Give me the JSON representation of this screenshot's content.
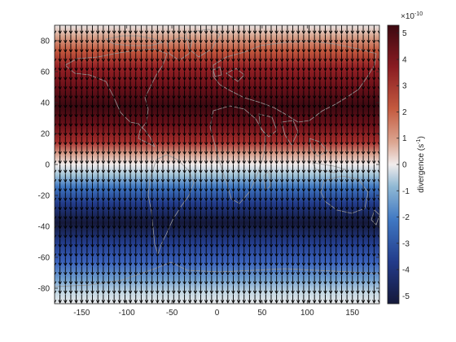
{
  "chart_data": {
    "type": "heatmap",
    "title": "",
    "xlabel": "",
    "ylabel": "",
    "xlim": [
      -180,
      180
    ],
    "ylim": [
      -90,
      90
    ],
    "x_ticks": [
      -150,
      -100,
      -50,
      0,
      50,
      100,
      150
    ],
    "y_ticks": [
      -80,
      -60,
      -40,
      -20,
      0,
      20,
      40,
      60,
      80
    ],
    "field": "divergence",
    "field_pattern": "zonally uniform: positive north of the equator (peak near 50N), negative south (peak near 50S), zero at the equator",
    "clim": [
      -5.3,
      5.3
    ],
    "colorbar": {
      "label": "divergence (s$^{-1}$)",
      "label_text": "divergence (s",
      "label_sup": "-1",
      "label_end": ")",
      "exponent_base": "×10",
      "exponent_power": "-10",
      "ticks": [
        -5,
        -4,
        -3,
        -2,
        -1,
        0,
        1,
        2,
        3,
        4,
        5
      ]
    },
    "quiver": {
      "direction": "southward",
      "x_spacing_deg": 6,
      "y_spacing_deg": 6,
      "color": "#000000"
    },
    "coastline_color": "#9a9a9a",
    "colors": {
      "positive_max": "#3c0911",
      "zero": "#f1ecec",
      "negative_max": "#15193a"
    }
  }
}
